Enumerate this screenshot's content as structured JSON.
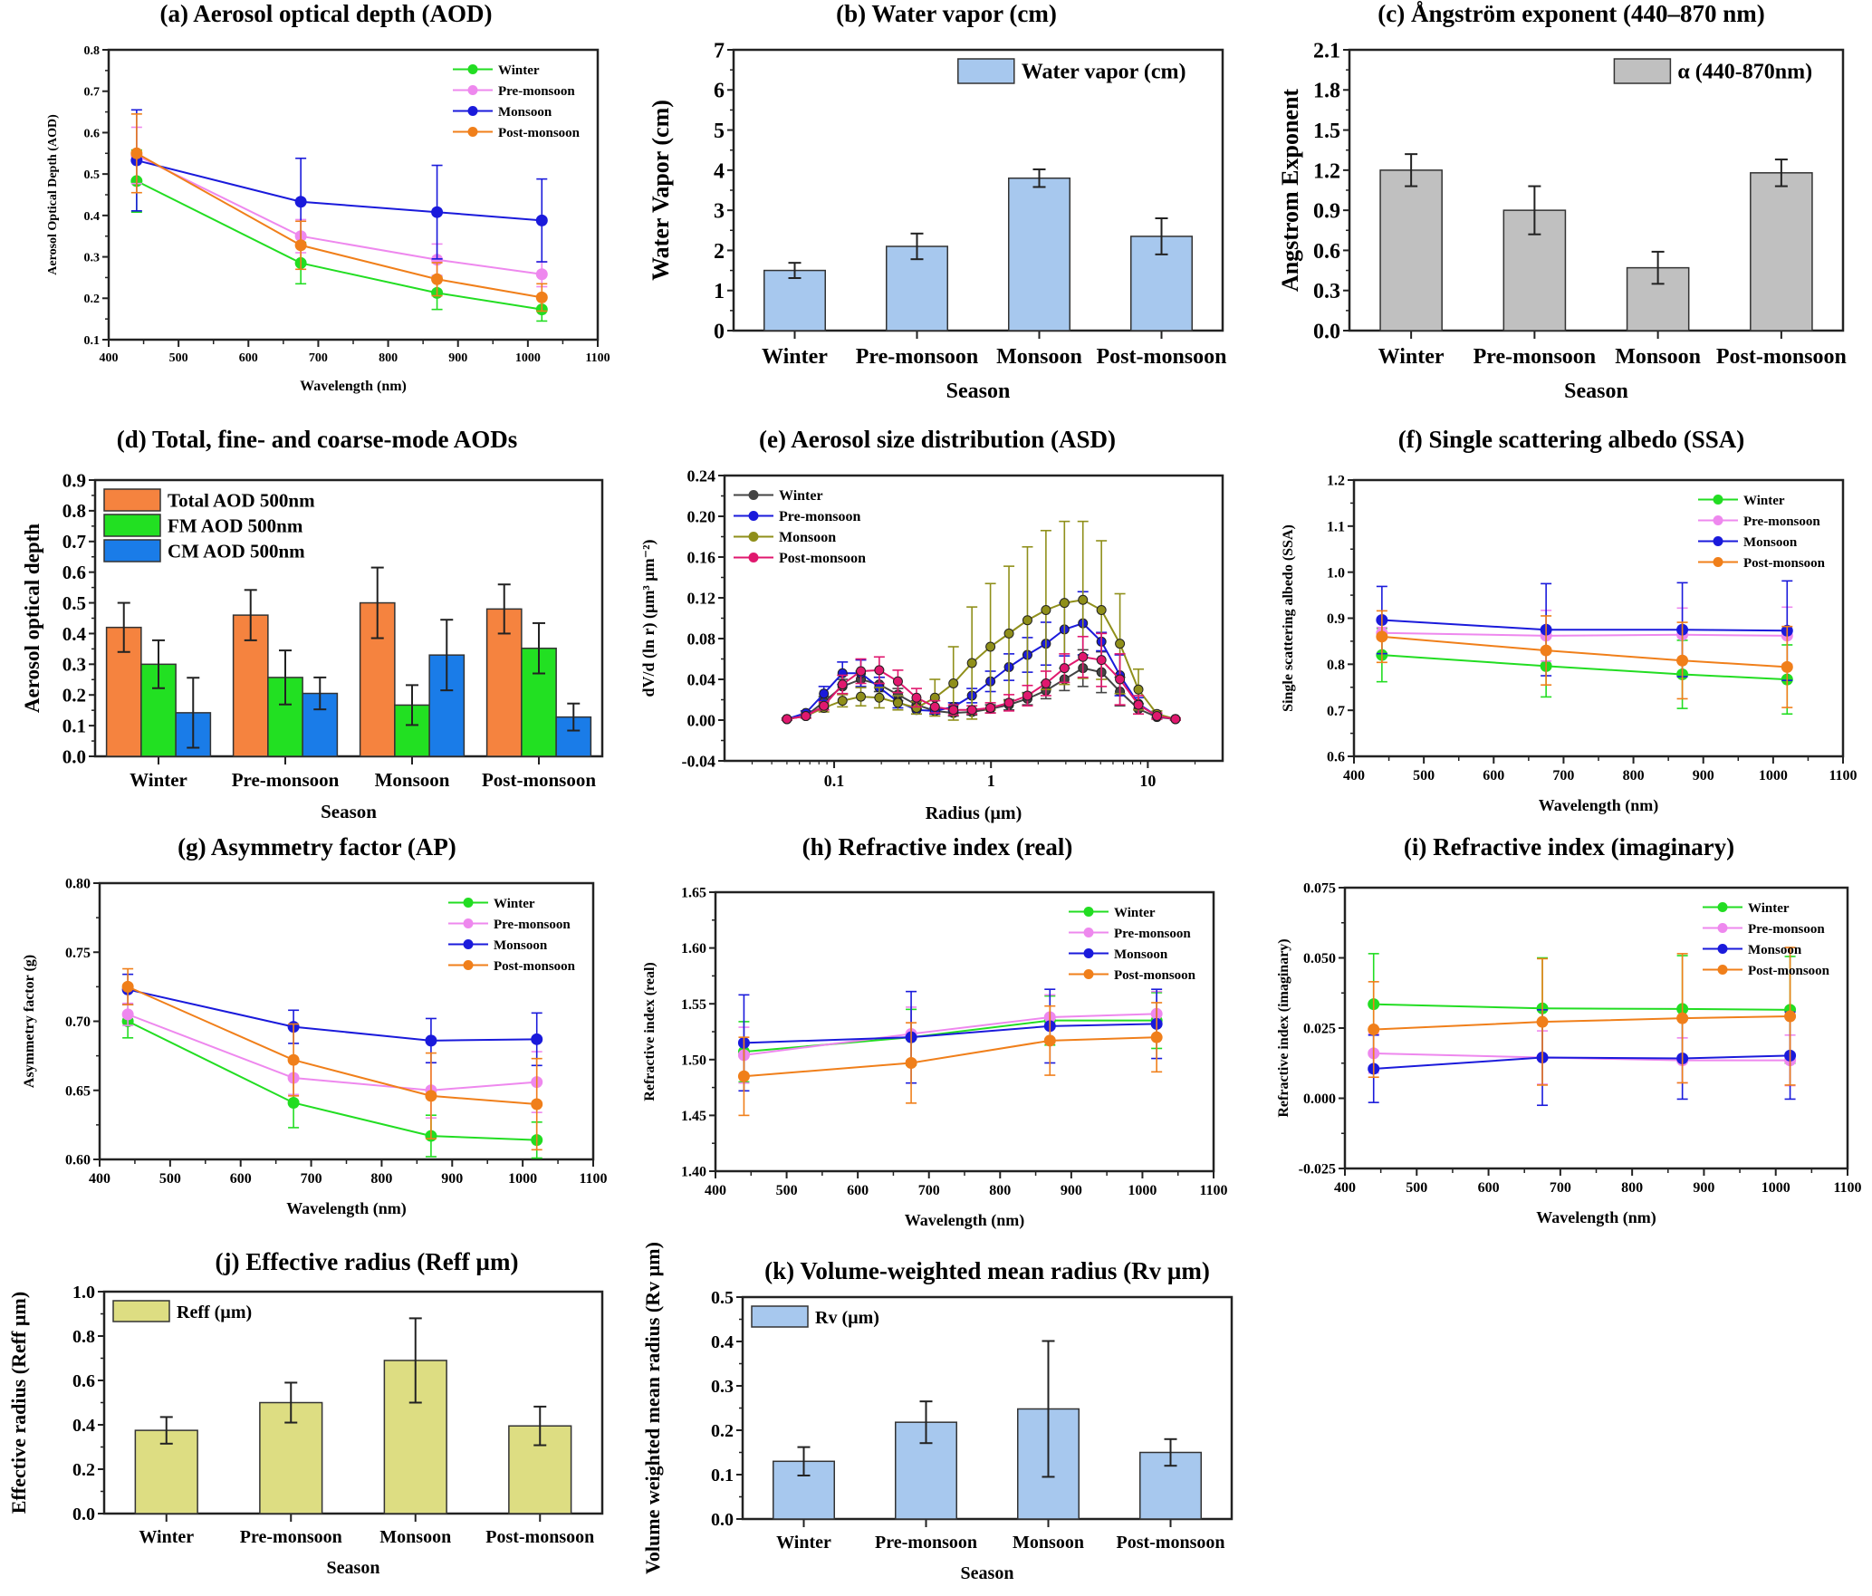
{
  "figure": {
    "seasons": [
      "Winter",
      "Pre-monsoon",
      "Monsoon",
      "Post-monsoon"
    ],
    "wavelengths_nm": [
      440,
      675,
      870,
      1020
    ],
    "season_colors": {
      "Winter": "#22dd22",
      "Pre-monsoon": "#ee88ee",
      "Monsoon": "#1a1adb",
      "Post-monsoon": "#f07f1a"
    }
  },
  "chart_data": [
    {
      "id": "a",
      "type": "line",
      "title": "(a) Aerosol optical depth (AOD)",
      "xlabel": "Wavelength (nm)",
      "ylabel": "Aerosol Optical Depth (AOD)",
      "xlim": [
        400,
        1100
      ],
      "ylim": [
        0.1,
        0.8
      ],
      "xticks": [
        400,
        500,
        600,
        700,
        800,
        900,
        1000,
        1100
      ],
      "yticks": [
        "0.1",
        "0.2",
        "0.3",
        "0.4",
        "0.5",
        "0.6",
        "0.7",
        "0.8"
      ],
      "grid": false,
      "legend": "top-right",
      "x": [
        440,
        675,
        870,
        1020
      ],
      "series": [
        {
          "name": "Winter",
          "color": "#22dd22",
          "values": [
            0.483,
            0.285,
            0.213,
            0.173
          ],
          "errors": [
            0.075,
            0.05,
            0.04,
            0.028
          ]
        },
        {
          "name": "Pre-monsoon",
          "color": "#ee88ee",
          "values": [
            0.545,
            0.35,
            0.293,
            0.258
          ],
          "errors": [
            0.068,
            0.04,
            0.038,
            0.03
          ]
        },
        {
          "name": "Monsoon",
          "color": "#1a1adb",
          "values": [
            0.533,
            0.433,
            0.408,
            0.388
          ],
          "errors": [
            0.122,
            0.105,
            0.113,
            0.1
          ]
        },
        {
          "name": "Post-monsoon",
          "color": "#f07f1a",
          "values": [
            0.55,
            0.328,
            0.246,
            0.202
          ],
          "errors": [
            0.095,
            0.058,
            0.04,
            0.033
          ]
        }
      ]
    },
    {
      "id": "b",
      "type": "bar",
      "title": "(b) Water vapor (cm)",
      "xlabel": "Season",
      "ylabel": "Water Vapor (cm)",
      "ylim": [
        0,
        7
      ],
      "yticks": [
        "0",
        "1",
        "2",
        "3",
        "4",
        "5",
        "6",
        "7"
      ],
      "legend": "top-right",
      "categories": [
        "Winter",
        "Pre-monsoon",
        "Monsoon",
        "Post-monsoon"
      ],
      "series": [
        {
          "name": "Water vapor (cm)",
          "color": "#a7c8ee",
          "values": [
            1.5,
            2.1,
            3.8,
            2.35
          ],
          "errors": [
            0.19,
            0.32,
            0.22,
            0.45
          ]
        }
      ]
    },
    {
      "id": "c",
      "type": "bar",
      "title": "(c) Ångström exponent (440–870 nm)",
      "xlabel": "Season",
      "ylabel": "Angstrom Exponent",
      "ylim": [
        0,
        2.1
      ],
      "yticks": [
        "0.0",
        "0.3",
        "0.6",
        "0.9",
        "1.2",
        "1.5",
        "1.8",
        "2.1"
      ],
      "legend": "top-right",
      "categories": [
        "Winter",
        "Pre-monsoon",
        "Monsoon",
        "Post-monsoon"
      ],
      "series": [
        {
          "name": "α (440-870nm)",
          "color": "#c0c0c0",
          "values": [
            1.2,
            0.9,
            0.47,
            1.18
          ],
          "errors": [
            0.12,
            0.18,
            0.12,
            0.1
          ]
        }
      ]
    },
    {
      "id": "d",
      "type": "bar",
      "title": "(d) Total, fine- and coarse-mode AODs",
      "xlabel": "Season",
      "ylabel": "Aerosol optical depth",
      "ylim": [
        0,
        0.9
      ],
      "yticks": [
        "0.0",
        "0.1",
        "0.2",
        "0.3",
        "0.4",
        "0.5",
        "0.6",
        "0.7",
        "0.8",
        "0.9"
      ],
      "legend": "top-left",
      "categories": [
        "Winter",
        "Pre-monsoon",
        "Monsoon",
        "Post-monsoon"
      ],
      "series": [
        {
          "name": "Total AOD 500nm",
          "color": "#f5833f",
          "values": [
            0.42,
            0.46,
            0.5,
            0.48
          ],
          "errors": [
            0.08,
            0.082,
            0.115,
            0.08
          ]
        },
        {
          "name": "FM AOD 500nm",
          "color": "#22e022",
          "values": [
            0.3,
            0.257,
            0.167,
            0.352
          ],
          "errors": [
            0.078,
            0.088,
            0.065,
            0.082
          ]
        },
        {
          "name": "CM AOD 500nm",
          "color": "#1a7ce8",
          "values": [
            0.142,
            0.205,
            0.33,
            0.128
          ],
          "errors": [
            0.114,
            0.052,
            0.115,
            0.044
          ]
        }
      ]
    },
    {
      "id": "e",
      "type": "line",
      "title": "(e) Aerosol size distribution (ASD)",
      "xlabel": "Radius (µm)",
      "ylabel": "dV/d (ln r) (µm³ µm⁻²)",
      "xscale": "log",
      "xlim": [
        0.02,
        30
      ],
      "ylim": [
        -0.04,
        0.24
      ],
      "xticks": [
        "0.1",
        "1",
        "10"
      ],
      "yticks": [
        "-0.04",
        "0.00",
        "0.04",
        "0.08",
        "0.12",
        "0.16",
        "0.20",
        "0.24"
      ],
      "legend": "top-left",
      "x": [
        0.05,
        0.066,
        0.086,
        0.113,
        0.148,
        0.194,
        0.255,
        0.335,
        0.439,
        0.576,
        0.756,
        0.992,
        1.302,
        1.708,
        2.241,
        2.94,
        3.857,
        5.061,
        6.641,
        8.713,
        11.432,
        15.0
      ],
      "series": [
        {
          "name": "Winter",
          "color": "#444444",
          "values": [
            0.001,
            0.004,
            0.018,
            0.033,
            0.04,
            0.035,
            0.025,
            0.015,
            0.009,
            0.007,
            0.008,
            0.011,
            0.015,
            0.021,
            0.029,
            0.04,
            0.051,
            0.047,
            0.028,
            0.011,
            0.003,
            0.001
          ],
          "errors": [
            0.001,
            0.002,
            0.005,
            0.007,
            0.008,
            0.007,
            0.006,
            0.004,
            0.003,
            0.003,
            0.003,
            0.004,
            0.005,
            0.006,
            0.008,
            0.011,
            0.018,
            0.02,
            0.014,
            0.005,
            0.002,
            0.001
          ]
        },
        {
          "name": "Pre-monsoon",
          "color": "#1a1adb",
          "values": [
            0.001,
            0.007,
            0.026,
            0.046,
            0.046,
            0.032,
            0.018,
            0.01,
            0.009,
            0.013,
            0.024,
            0.038,
            0.052,
            0.064,
            0.075,
            0.089,
            0.095,
            0.077,
            0.044,
            0.016,
            0.004,
            0.001
          ],
          "errors": [
            0.001,
            0.002,
            0.007,
            0.011,
            0.013,
            0.01,
            0.006,
            0.004,
            0.003,
            0.004,
            0.007,
            0.01,
            0.013,
            0.017,
            0.021,
            0.026,
            0.031,
            0.009,
            0.02,
            0.006,
            0.002,
            0.001
          ]
        },
        {
          "name": "Monsoon",
          "color": "#8f8f1a",
          "values": [
            0.001,
            0.004,
            0.012,
            0.019,
            0.023,
            0.022,
            0.017,
            0.012,
            0.022,
            0.036,
            0.056,
            0.072,
            0.085,
            0.098,
            0.108,
            0.115,
            0.118,
            0.108,
            0.075,
            0.03,
            0.006,
            0.001
          ],
          "errors": [
            0.001,
            0.002,
            0.004,
            0.006,
            0.009,
            0.01,
            0.007,
            0.006,
            0.018,
            0.036,
            0.055,
            0.062,
            0.066,
            0.072,
            0.078,
            0.08,
            0.077,
            0.068,
            0.049,
            0.02,
            0.003,
            0.001
          ]
        },
        {
          "name": "Post-monsoon",
          "color": "#e0186e",
          "values": [
            0.001,
            0.004,
            0.014,
            0.035,
            0.048,
            0.049,
            0.038,
            0.022,
            0.013,
            0.01,
            0.01,
            0.012,
            0.017,
            0.024,
            0.036,
            0.051,
            0.062,
            0.059,
            0.04,
            0.015,
            0.004,
            0.001
          ],
          "errors": [
            0.001,
            0.002,
            0.004,
            0.009,
            0.012,
            0.013,
            0.011,
            0.009,
            0.006,
            0.005,
            0.004,
            0.005,
            0.008,
            0.01,
            0.012,
            0.014,
            0.02,
            0.026,
            0.025,
            0.009,
            0.003,
            0.001
          ]
        }
      ]
    },
    {
      "id": "f",
      "type": "line",
      "title": "(f) Single scattering albedo (SSA)",
      "xlabel": "Wavelength (nm)",
      "ylabel": "Single scattering albedo (SSA)",
      "xlim": [
        400,
        1100
      ],
      "ylim": [
        0.6,
        1.2
      ],
      "xticks": [
        400,
        500,
        600,
        700,
        800,
        900,
        1000,
        1100
      ],
      "yticks": [
        "0.6",
        "0.7",
        "0.8",
        "0.9",
        "1.0",
        "1.1",
        "1.2"
      ],
      "legend": "top-right",
      "x": [
        440,
        675,
        870,
        1020
      ],
      "series": [
        {
          "name": "Winter",
          "color": "#22dd22",
          "values": [
            0.82,
            0.796,
            0.778,
            0.767
          ],
          "errors": [
            0.058,
            0.067,
            0.074,
            0.075
          ]
        },
        {
          "name": "Pre-monsoon",
          "color": "#ee88ee",
          "values": [
            0.868,
            0.862,
            0.864,
            0.862
          ],
          "errors": [
            0.012,
            0.055,
            0.058,
            0.062
          ]
        },
        {
          "name": "Monsoon",
          "color": "#1a1adb",
          "values": [
            0.896,
            0.875,
            0.875,
            0.873
          ],
          "errors": [
            0.073,
            0.1,
            0.102,
            0.108
          ]
        },
        {
          "name": "Post-monsoon",
          "color": "#f07f1a",
          "values": [
            0.86,
            0.83,
            0.808,
            0.794
          ],
          "errors": [
            0.056,
            0.075,
            0.083,
            0.088
          ]
        }
      ]
    },
    {
      "id": "g",
      "type": "line",
      "title": "(g) Asymmetry factor (AP)",
      "xlabel": "Wavelength (nm)",
      "ylabel": "Asymmetry factor (g)",
      "xlim": [
        400,
        1100
      ],
      "ylim": [
        0.6,
        0.8
      ],
      "xticks": [
        400,
        500,
        600,
        700,
        800,
        900,
        1000,
        1100
      ],
      "yticks": [
        "0.60",
        "0.65",
        "0.70",
        "0.75",
        "0.80"
      ],
      "legend": "top-right",
      "x": [
        440,
        675,
        870,
        1020
      ],
      "series": [
        {
          "name": "Winter",
          "color": "#22dd22",
          "values": [
            0.7,
            0.641,
            0.617,
            0.614
          ],
          "errors": [
            0.012,
            0.018,
            0.015,
            0.013
          ]
        },
        {
          "name": "Pre-monsoon",
          "color": "#ee88ee",
          "values": [
            0.705,
            0.659,
            0.65,
            0.656
          ],
          "errors": [
            0.008,
            0.012,
            0.02,
            0.022
          ]
        },
        {
          "name": "Monsoon",
          "color": "#1a1adb",
          "values": [
            0.723,
            0.696,
            0.686,
            0.687
          ],
          "errors": [
            0.011,
            0.012,
            0.016,
            0.019
          ]
        },
        {
          "name": "Post-monsoon",
          "color": "#f07f1a",
          "values": [
            0.725,
            0.672,
            0.646,
            0.64
          ],
          "errors": [
            0.013,
            0.026,
            0.031,
            0.033
          ]
        }
      ]
    },
    {
      "id": "h",
      "type": "line",
      "title": "(h) Refractive index (real)",
      "xlabel": "Wavelength (nm)",
      "ylabel": "Refractive index (real)",
      "xlim": [
        400,
        1100
      ],
      "ylim": [
        1.4,
        1.65
      ],
      "xticks": [
        400,
        500,
        600,
        700,
        800,
        900,
        1000,
        1100
      ],
      "yticks": [
        "1.40",
        "1.45",
        "1.50",
        "1.55",
        "1.60",
        "1.65"
      ],
      "legend": "top-right",
      "x": [
        440,
        675,
        870,
        1020
      ],
      "series": [
        {
          "name": "Winter",
          "color": "#22dd22",
          "values": [
            1.507,
            1.52,
            1.535,
            1.535
          ],
          "errors": [
            0.027,
            0.025,
            0.022,
            0.025
          ]
        },
        {
          "name": "Pre-monsoon",
          "color": "#ee88ee",
          "values": [
            1.504,
            1.523,
            1.538,
            1.541
          ],
          "errors": [
            0.025,
            0.024,
            0.02,
            0.02
          ]
        },
        {
          "name": "Monsoon",
          "color": "#1a1adb",
          "values": [
            1.515,
            1.52,
            1.53,
            1.532
          ],
          "errors": [
            0.043,
            0.041,
            0.033,
            0.031
          ]
        },
        {
          "name": "Post-monsoon",
          "color": "#f07f1a",
          "values": [
            1.485,
            1.497,
            1.517,
            1.52
          ],
          "errors": [
            0.035,
            0.036,
            0.031,
            0.031
          ]
        }
      ]
    },
    {
      "id": "i",
      "type": "line",
      "title": "(i) Refractive index (imaginary)",
      "xlabel": "Wavelength (nm)",
      "ylabel": "Refractive index (imaginary)",
      "xlim": [
        400,
        1100
      ],
      "ylim": [
        -0.025,
        0.075
      ],
      "xticks": [
        400,
        500,
        600,
        700,
        800,
        900,
        1000,
        1100
      ],
      "yticks": [
        "-0.025",
        "0.000",
        "0.025",
        "0.050",
        "0.075"
      ],
      "legend": "top-right",
      "x": [
        440,
        675,
        870,
        1020
      ],
      "series": [
        {
          "name": "Winter",
          "color": "#22dd22",
          "values": [
            0.0335,
            0.032,
            0.0318,
            0.0315
          ],
          "errors": [
            0.018,
            0.018,
            0.019,
            0.019
          ]
        },
        {
          "name": "Pre-monsoon",
          "color": "#ee88ee",
          "values": [
            0.016,
            0.0145,
            0.0135,
            0.0135
          ],
          "errors": [
            0.007,
            0.0095,
            0.008,
            0.009
          ]
        },
        {
          "name": "Monsoon",
          "color": "#1a1adb",
          "values": [
            0.0105,
            0.0145,
            0.0142,
            0.0152
          ],
          "errors": [
            0.012,
            0.017,
            0.0145,
            0.0155
          ]
        },
        {
          "name": "Post-monsoon",
          "color": "#f07f1a",
          "values": [
            0.0245,
            0.0272,
            0.0285,
            0.0292
          ],
          "errors": [
            0.017,
            0.0225,
            0.023,
            0.0245
          ]
        }
      ]
    },
    {
      "id": "j",
      "type": "bar",
      "title": "(j) Effective radius (Reff µm)",
      "xlabel": "Season",
      "ylabel": "Effective radius (Reff µm)",
      "ylim": [
        0,
        1.0
      ],
      "yticks": [
        "0.0",
        "0.2",
        "0.4",
        "0.6",
        "0.8",
        "1.0"
      ],
      "legend": "top-left",
      "categories": [
        "Winter",
        "Pre-monsoon",
        "Monsoon",
        "Post-monsoon"
      ],
      "series": [
        {
          "name": "Reff (µm)",
          "color": "#dddd82",
          "values": [
            0.375,
            0.5,
            0.69,
            0.395
          ],
          "errors": [
            0.06,
            0.09,
            0.19,
            0.087
          ]
        }
      ]
    },
    {
      "id": "k",
      "type": "bar",
      "title": "(k) Volume-weighted mean radius (Rv µm)",
      "xlabel": "Season",
      "ylabel": "Volume weighted mean radius (Rv µm)",
      "ylim": [
        0,
        0.5
      ],
      "yticks": [
        "0.0",
        "0.1",
        "0.2",
        "0.3",
        "0.4",
        "0.5"
      ],
      "legend": "top-left",
      "categories": [
        "Winter",
        "Pre-monsoon",
        "Monsoon",
        "Post-monsoon"
      ],
      "series": [
        {
          "name": "Rv (µm)",
          "color": "#a7c8ee",
          "values": [
            0.13,
            0.218,
            0.248,
            0.15
          ],
          "errors": [
            0.032,
            0.047,
            0.153,
            0.03
          ]
        }
      ]
    }
  ]
}
